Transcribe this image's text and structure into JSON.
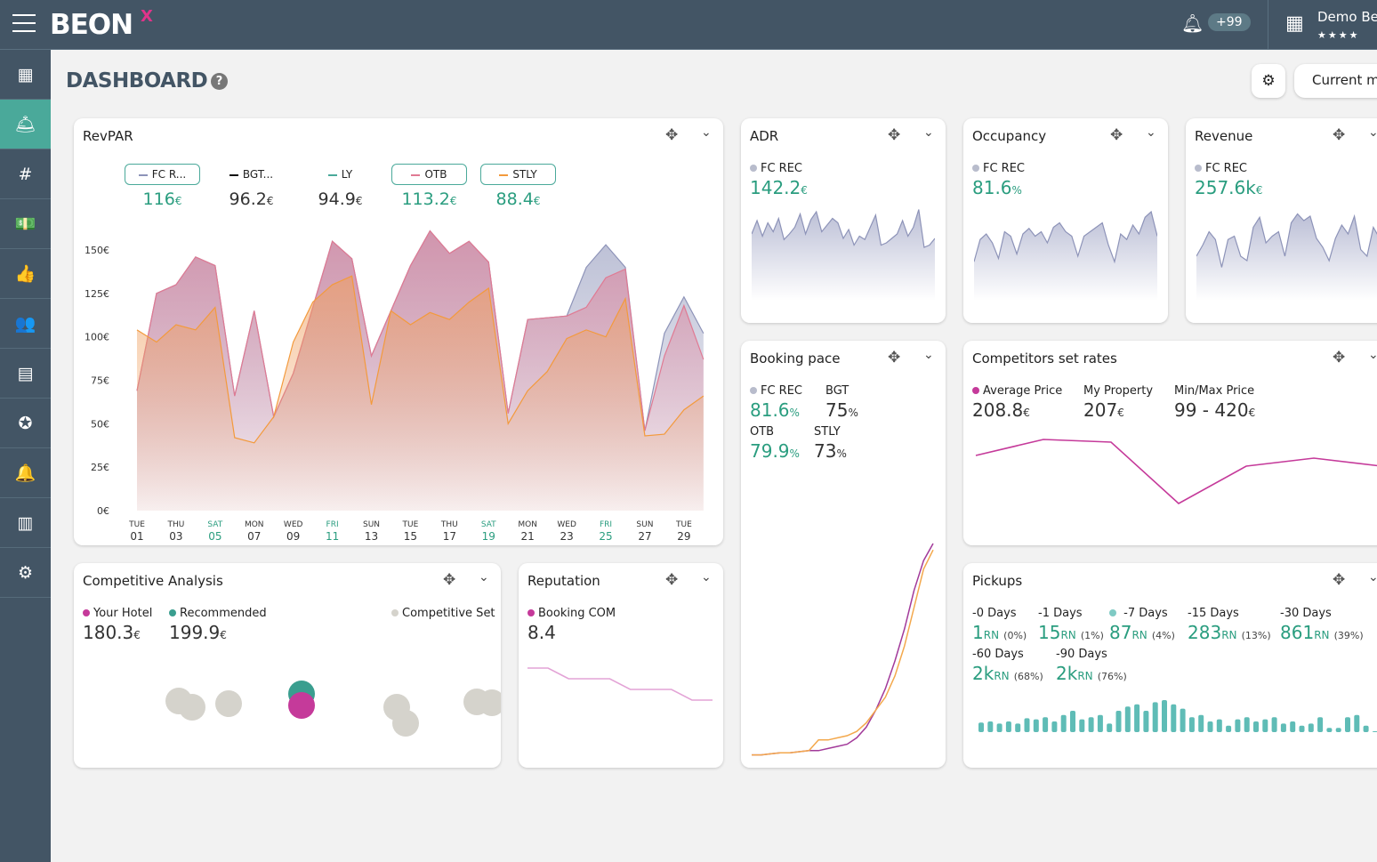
{
  "header": {
    "logo": "BEON",
    "logo_x": "X",
    "notifications": "+99",
    "hotel": "Demo Beo",
    "stars": "★★★★"
  },
  "sidebar": {
    "items": [
      {
        "icon": "grid-icon",
        "g": "▦"
      },
      {
        "icon": "reception-bell-icon",
        "g": "🛎"
      },
      {
        "icon": "hash-grid-icon",
        "g": "#"
      },
      {
        "icon": "money-icon",
        "g": "💵"
      },
      {
        "icon": "thumbs-up-icon",
        "g": "👍"
      },
      {
        "icon": "users-icon",
        "g": "👥"
      },
      {
        "icon": "building-icon",
        "g": "▤"
      },
      {
        "icon": "award-icon",
        "g": "✪"
      },
      {
        "icon": "bell-icon",
        "g": "🔔"
      },
      {
        "icon": "bar-chart-icon",
        "g": "▥"
      },
      {
        "icon": "settings-icon",
        "g": "⚙"
      }
    ],
    "active": 1
  },
  "page": {
    "title": "DASHBOARD",
    "help": "?",
    "period_button": "Current m"
  },
  "colors": {
    "teal": "#2a9d7f",
    "header": "#435565",
    "fc": "#8d93b8",
    "otb": "#e07a93",
    "stly": "#f39a3c",
    "magenta": "#c53a9a"
  },
  "revpar": {
    "title": "RevPAR",
    "kpis": [
      {
        "label": "FC R...",
        "value": "116",
        "unit": "€",
        "color": "#8d93b8",
        "selected": true
      },
      {
        "label": "BGT...",
        "value": "96.2",
        "unit": "€",
        "color": "#111",
        "selected": false
      },
      {
        "label": "LY",
        "value": "94.9",
        "unit": "€",
        "color": "#4aa99a",
        "selected": false
      },
      {
        "label": "OTB",
        "value": "113.2",
        "unit": "€",
        "color": "#e07a93",
        "selected": true
      },
      {
        "label": "STLY",
        "value": "88.4",
        "unit": "€",
        "color": "#f39a3c",
        "selected": true
      }
    ]
  },
  "adr": {
    "title": "ADR",
    "label": "FC REC",
    "value": "142.2",
    "unit": "€"
  },
  "occupancy": {
    "title": "Occupancy",
    "label": "FC REC",
    "value": "81.6",
    "unit": "%"
  },
  "revenue": {
    "title": "Revenue",
    "label": "FC REC",
    "value": "257.6k",
    "unit": "€"
  },
  "booking_pace": {
    "title": "Booking pace",
    "items": [
      {
        "label": "FC REC",
        "value": "81.6",
        "unit": "%",
        "teal": true
      },
      {
        "label": "BGT",
        "value": "75",
        "unit": "%",
        "teal": false
      },
      {
        "label": "OTB",
        "value": "79.9",
        "unit": "%",
        "teal": true
      },
      {
        "label": "STLY",
        "value": "73",
        "unit": "%",
        "teal": false
      }
    ]
  },
  "competitors": {
    "title": "Competitors set rates",
    "items": [
      {
        "label": "Average Price",
        "value": "208.8",
        "unit": "€"
      },
      {
        "label": "My Property",
        "value": "207",
        "unit": "€"
      },
      {
        "label": "Min/Max Price",
        "value": "99 - 420",
        "unit": "€"
      }
    ]
  },
  "competitive_analysis": {
    "title": "Competitive Analysis",
    "items": [
      {
        "label": "Your Hotel",
        "value": "180.3",
        "unit": "€",
        "color": "#c53a9a"
      },
      {
        "label": "Recommended",
        "value": "199.9",
        "unit": "€",
        "color": "#3a9e8f"
      },
      {
        "label": "Competitive Set",
        "color": "#d5d3cc"
      }
    ]
  },
  "reputation": {
    "title": "Reputation",
    "label": "Booking COM",
    "value": "8.4"
  },
  "pickups": {
    "title": "Pickups",
    "items": [
      {
        "label": "-0 Days",
        "value": "1",
        "pct": "(0%)"
      },
      {
        "label": "-1 Days",
        "value": "15",
        "pct": "(1%)"
      },
      {
        "label": "-7 Days",
        "value": "87",
        "pct": "(4%)"
      },
      {
        "label": "-15 Days",
        "value": "283",
        "pct": "(13%)"
      },
      {
        "label": "-30 Days",
        "value": "861",
        "pct": "(39%)"
      },
      {
        "label": "-60 Days",
        "value": "2k",
        "pct": "(68%)"
      },
      {
        "label": "-90 Days",
        "value": "2k",
        "pct": "(76%)"
      }
    ],
    "unit": "RN"
  },
  "chart_data": [
    {
      "id": "revpar",
      "type": "area",
      "ylim": [
        0,
        150
      ],
      "yticks": [
        "0€",
        "25€",
        "50€",
        "75€",
        "100€",
        "125€",
        "150€"
      ],
      "xticks": [
        {
          "d": "TUE",
          "n": "01"
        },
        {
          "d": "THU",
          "n": "03"
        },
        {
          "d": "SAT",
          "n": "05",
          "we": true
        },
        {
          "d": "MON",
          "n": "07"
        },
        {
          "d": "WED",
          "n": "09"
        },
        {
          "d": "FRI",
          "n": "11",
          "we": true
        },
        {
          "d": "SUN",
          "n": "13"
        },
        {
          "d": "TUE",
          "n": "15"
        },
        {
          "d": "THU",
          "n": "17"
        },
        {
          "d": "SAT",
          "n": "19",
          "we": true
        },
        {
          "d": "MON",
          "n": "21"
        },
        {
          "d": "WED",
          "n": "23"
        },
        {
          "d": "FRI",
          "n": "25",
          "we": true
        },
        {
          "d": "SUN",
          "n": "27"
        },
        {
          "d": "TUE",
          "n": "29"
        }
      ],
      "series": [
        {
          "name": "FC R...",
          "values": [
            69,
            125,
            130,
            146,
            141,
            66,
            115,
            54,
            79,
            117,
            155,
            145,
            89,
            115,
            141,
            161,
            148,
            155,
            143,
            56,
            110,
            111,
            112,
            140,
            153,
            140,
            46,
            102,
            123,
            102
          ]
        },
        {
          "name": "OTB",
          "values": [
            69,
            125,
            130,
            146,
            141,
            66,
            115,
            54,
            79,
            117,
            155,
            145,
            89,
            115,
            141,
            161,
            148,
            155,
            143,
            56,
            110,
            111,
            112,
            117,
            134,
            139,
            46,
            89,
            118,
            87
          ]
        },
        {
          "name": "STLY",
          "values": [
            104,
            97,
            107,
            104,
            117,
            42,
            39,
            54,
            97,
            120,
            130,
            135,
            61,
            115,
            107,
            114,
            110,
            120,
            128,
            50,
            69,
            80,
            99,
            104,
            100,
            122,
            43,
            44,
            58,
            66
          ]
        }
      ]
    },
    {
      "id": "adr",
      "type": "area",
      "values": [
        60,
        72,
        58,
        70,
        62,
        74,
        55,
        60,
        66,
        78,
        60,
        73,
        80,
        62,
        68,
        74,
        70,
        56,
        64,
        50,
        58,
        55,
        66,
        77,
        50,
        52,
        56,
        60,
        72,
        58,
        66,
        82,
        48,
        50,
        56
      ]
    },
    {
      "id": "occupancy",
      "type": "area",
      "values": [
        35,
        55,
        60,
        52,
        38,
        62,
        58,
        42,
        60,
        65,
        58,
        62,
        52,
        66,
        70,
        62,
        58,
        40,
        58,
        62,
        66,
        70,
        50,
        35,
        60,
        55,
        68,
        60,
        75,
        80,
        58
      ]
    },
    {
      "id": "revenue",
      "type": "area",
      "values": [
        40,
        50,
        62,
        55,
        30,
        55,
        58,
        40,
        36,
        66,
        75,
        52,
        58,
        62,
        40,
        70,
        78,
        72,
        76,
        56,
        48,
        36,
        56,
        68,
        60,
        76,
        46,
        40,
        66,
        56
      ]
    },
    {
      "id": "booking_pace",
      "type": "line",
      "series": [
        {
          "name": "FC REC",
          "values": [
            1,
            1,
            1.5,
            2,
            2,
            2.5,
            3,
            3,
            4,
            5,
            6,
            9,
            14,
            22,
            32,
            45,
            60,
            78,
            92,
            100
          ]
        },
        {
          "name": "OTB",
          "values": [
            1,
            1,
            1.5,
            2,
            2,
            2.5,
            3,
            8,
            8,
            9,
            10,
            12,
            16,
            22,
            28,
            38,
            52,
            70,
            88,
            97
          ]
        }
      ]
    },
    {
      "id": "competitors",
      "type": "line",
      "values": [
        210,
        240,
        235,
        120,
        190,
        205,
        190
      ]
    },
    {
      "id": "competitive_analysis",
      "type": "scatter",
      "series": [
        {
          "name": "Competitive Set",
          "values": [
            [
              118,
              5
            ],
            [
              133,
              -2
            ],
            [
              174,
              2
            ],
            [
              363,
              -2
            ],
            [
              373,
              -20
            ],
            [
              453,
              4
            ],
            [
              470,
              3
            ],
            [
              527,
              56
            ]
          ]
        },
        {
          "name": "Recommended",
          "values": [
            [
              256,
              13
            ]
          ]
        },
        {
          "name": "Your Hotel",
          "values": [
            [
              256,
              0
            ]
          ]
        }
      ]
    },
    {
      "id": "reputation",
      "type": "line",
      "values": [
        8.6,
        8.6,
        8.4,
        8.4,
        8.4,
        8.2,
        8.2,
        8.2,
        8.0,
        8.0
      ]
    },
    {
      "id": "pickups",
      "type": "bar",
      "values": [
        9,
        10,
        8,
        10,
        8,
        13,
        12,
        14,
        10,
        16,
        20,
        12,
        14,
        16,
        8,
        20,
        24,
        26,
        20,
        28,
        30,
        26,
        22,
        14,
        16,
        10,
        12,
        6,
        12,
        14,
        10,
        12,
        14,
        8,
        10,
        6,
        8,
        14,
        4,
        4,
        14,
        16,
        6,
        0,
        2,
        0,
        6,
        0,
        4,
        0,
        4,
        6,
        12,
        22,
        28
      ]
    }
  ]
}
